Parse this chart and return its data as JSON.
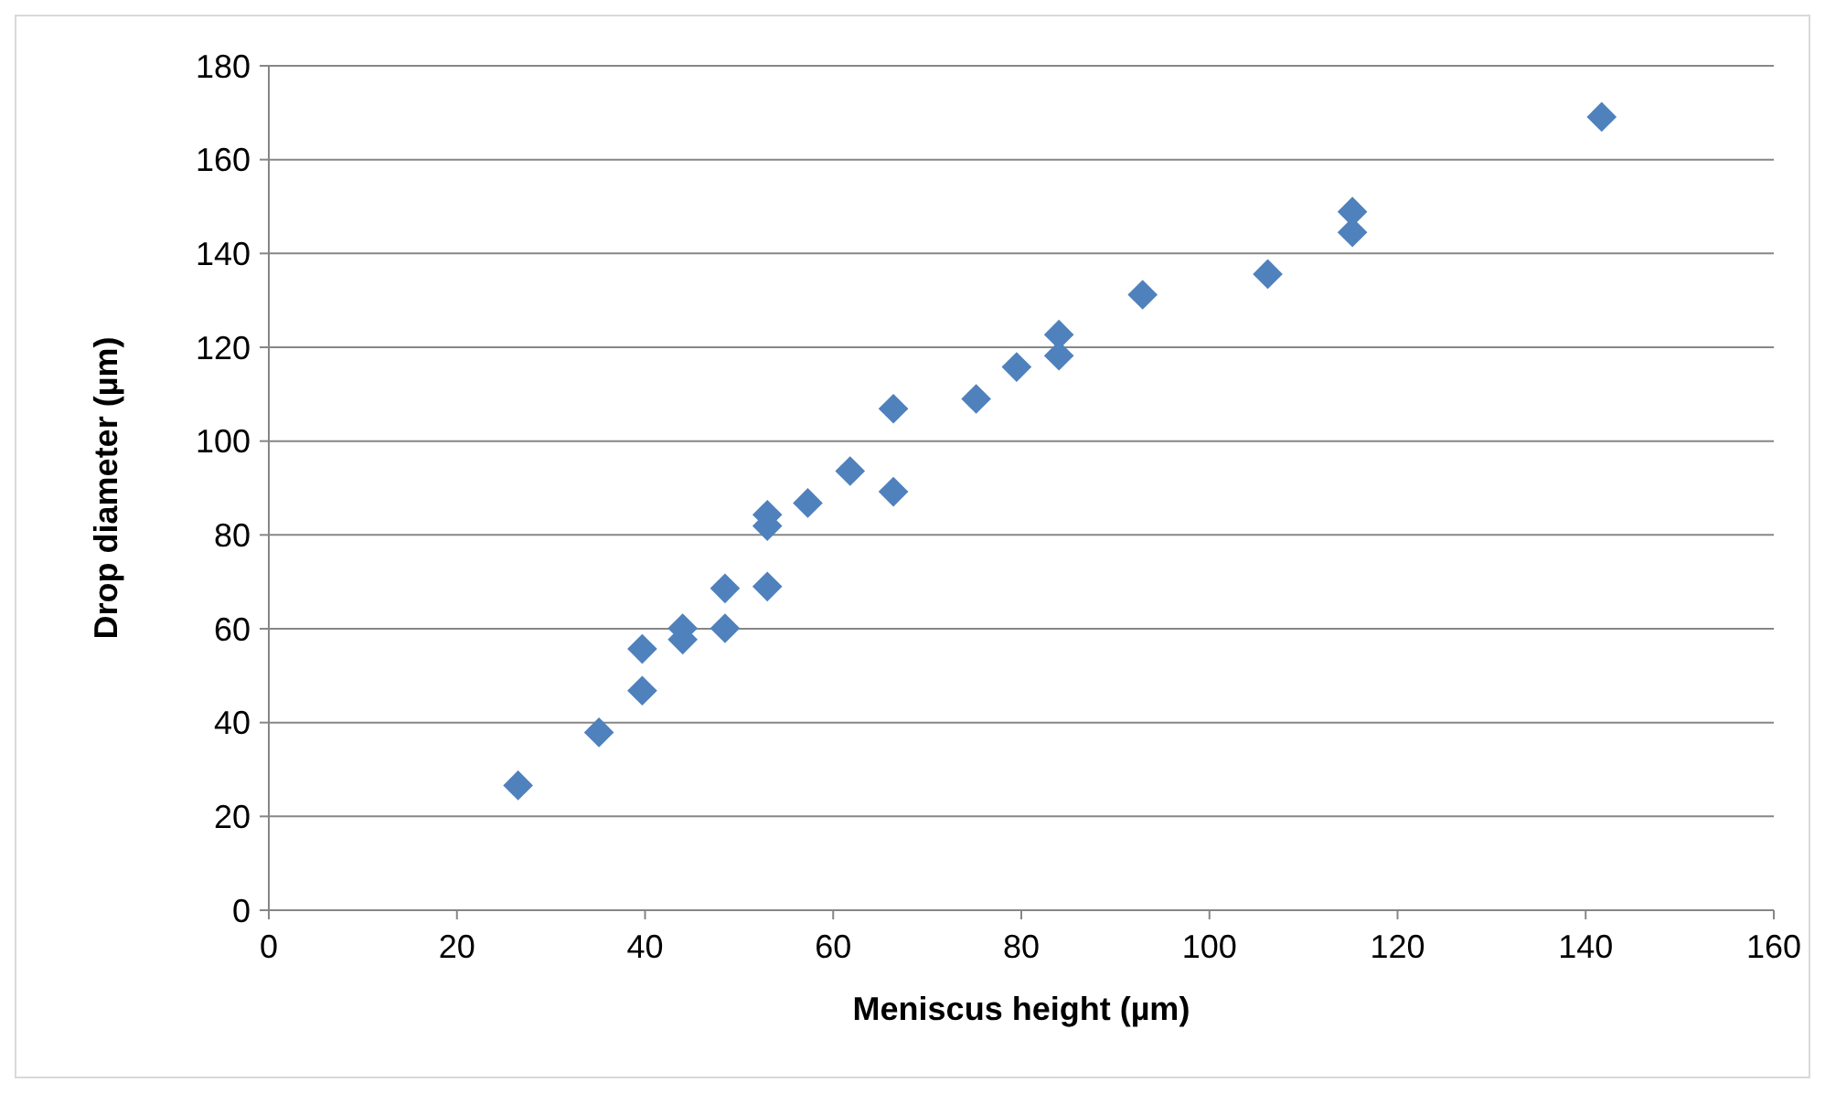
{
  "chart_data": {
    "type": "scatter",
    "xlabel": "Meniscus height (µm)",
    "ylabel": "Drop diameter (µm)",
    "x": [
      26.5,
      35.1,
      39.7,
      39.7,
      44.0,
      44.0,
      48.5,
      48.5,
      53.0,
      53.0,
      53.0,
      57.3,
      61.8,
      66.4,
      66.4,
      75.2,
      79.5,
      84.0,
      84.0,
      92.9,
      106.2,
      115.2,
      115.2,
      141.7
    ],
    "values": [
      26.6,
      37.9,
      55.7,
      46.8,
      60.1,
      57.7,
      68.6,
      60.1,
      84.3,
      81.9,
      69.0,
      86.8,
      93.6,
      106.9,
      89.2,
      109.0,
      115.8,
      122.7,
      118.2,
      131.2,
      135.6,
      148.9,
      144.5,
      169.1
    ],
    "color": "#4f81bd",
    "marker": "diamond",
    "grid": "y",
    "xlim": [
      0,
      160
    ],
    "xticks": [
      0,
      20,
      40,
      60,
      80,
      100,
      120,
      140,
      160
    ],
    "ylim": [
      0,
      180
    ],
    "yticks": [
      0,
      20,
      40,
      60,
      80,
      100,
      120,
      140,
      160,
      180
    ]
  }
}
